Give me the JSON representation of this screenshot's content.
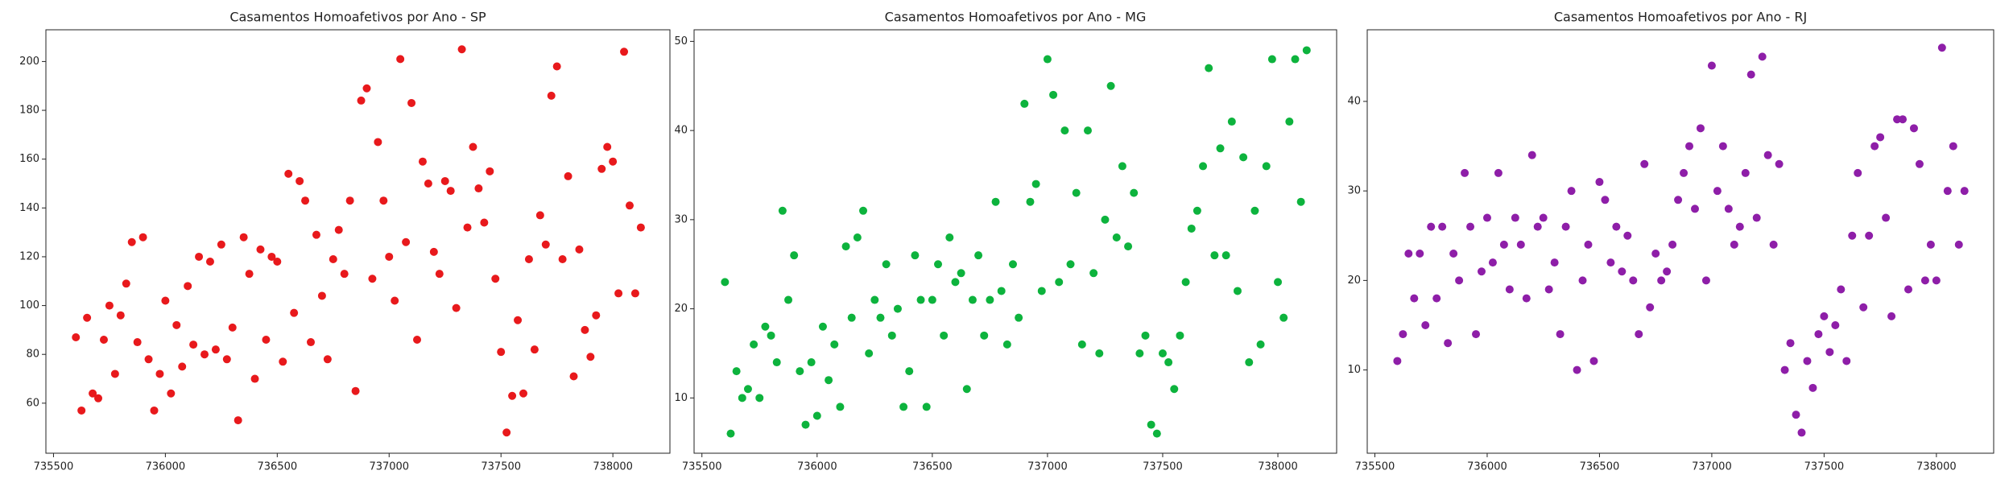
{
  "chart_data": [
    {
      "type": "scatter",
      "title": "Casamentos Homoafetivos por Ano  - SP",
      "color": "#e8191c",
      "x": [
        735600,
        735625,
        735650,
        735675,
        735700,
        735725,
        735750,
        735775,
        735800,
        735825,
        735850,
        735875,
        735900,
        735925,
        735950,
        735975,
        736000,
        736025,
        736050,
        736075,
        736100,
        736125,
        736150,
        736175,
        736200,
        736225,
        736250,
        736275,
        736300,
        736325,
        736350,
        736375,
        736400,
        736425,
        736450,
        736475,
        736500,
        736525,
        736550,
        736575,
        736600,
        736625,
        736650,
        736675,
        736700,
        736725,
        736750,
        736775,
        736800,
        736825,
        736850,
        736875,
        736900,
        736925,
        736950,
        736975,
        737000,
        737025,
        737050,
        737075,
        737100,
        737125,
        737150,
        737175,
        737200,
        737225,
        737250,
        737275,
        737300,
        737325,
        737350,
        737375,
        737400,
        737425,
        737450,
        737475,
        737500,
        737525,
        737550,
        737575,
        737600,
        737625,
        737650,
        737675,
        737700,
        737725,
        737750,
        737775,
        737800,
        737825,
        737850,
        737875,
        737900,
        737925,
        737950,
        737975,
        738000,
        738025,
        738050,
        738075,
        738100,
        738125
      ],
      "values": [
        87,
        57,
        95,
        64,
        62,
        86,
        100,
        72,
        96,
        109,
        126,
        85,
        128,
        78,
        57,
        72,
        102,
        64,
        92,
        75,
        108,
        84,
        120,
        80,
        118,
        82,
        125,
        78,
        91,
        53,
        128,
        113,
        70,
        123,
        86,
        120,
        118,
        77,
        154,
        97,
        151,
        143,
        85,
        129,
        104,
        78,
        119,
        131,
        113,
        143,
        65,
        184,
        189,
        111,
        167,
        143,
        120,
        102,
        201,
        126,
        183,
        86,
        159,
        150,
        122,
        113,
        151,
        147,
        99,
        205,
        132,
        165,
        148,
        134,
        155,
        111,
        81,
        48,
        63,
        94,
        64,
        119,
        82,
        137,
        125,
        186,
        198,
        119,
        153,
        71,
        123,
        90,
        79,
        96,
        156,
        165,
        159,
        105,
        204,
        141,
        105,
        132
      ],
      "xlim": [
        735466,
        738255
      ],
      "ylim": [
        39.5,
        213
      ],
      "xticks": [
        735500,
        736000,
        736500,
        737000,
        737500,
        738000
      ],
      "yticks": [
        60,
        80,
        100,
        120,
        140,
        160,
        180,
        200
      ]
    },
    {
      "type": "scatter",
      "title": "Casamentos Homoafetivos por Ano - MG",
      "color": "#0db33d",
      "x": [
        735600,
        735625,
        735650,
        735675,
        735700,
        735725,
        735750,
        735775,
        735800,
        735825,
        735850,
        735875,
        735900,
        735925,
        735950,
        735975,
        736000,
        736025,
        736050,
        736075,
        736100,
        736125,
        736150,
        736175,
        736200,
        736225,
        736250,
        736275,
        736300,
        736325,
        736350,
        736375,
        736400,
        736425,
        736450,
        736475,
        736500,
        736525,
        736550,
        736575,
        736600,
        736625,
        736650,
        736675,
        736700,
        736725,
        736750,
        736775,
        736800,
        736825,
        736850,
        736875,
        736900,
        736925,
        736950,
        736975,
        737000,
        737025,
        737050,
        737075,
        737100,
        737125,
        737150,
        737175,
        737200,
        737225,
        737250,
        737275,
        737300,
        737325,
        737350,
        737375,
        737400,
        737425,
        737450,
        737475,
        737500,
        737525,
        737550,
        737575,
        737600,
        737625,
        737650,
        737675,
        737700,
        737725,
        737750,
        737775,
        737800,
        737825,
        737850,
        737875,
        737900,
        737925,
        737950,
        737975,
        738000,
        738025,
        738050,
        738075,
        738100,
        738125
      ],
      "values": [
        23,
        6,
        13,
        10,
        11,
        16,
        10,
        18,
        17,
        14,
        31,
        21,
        26,
        13,
        7,
        14,
        8,
        18,
        12,
        16,
        9,
        27,
        19,
        28,
        31,
        15,
        21,
        19,
        25,
        17,
        20,
        9,
        13,
        26,
        21,
        9,
        21,
        25,
        17,
        28,
        23,
        24,
        11,
        21,
        26,
        17,
        21,
        32,
        22,
        16,
        25,
        19,
        43,
        32,
        34,
        22,
        48,
        44,
        23,
        40,
        25,
        33,
        16,
        40,
        24,
        15,
        30,
        45,
        28,
        36,
        27,
        33,
        15,
        17,
        7,
        6,
        15,
        14,
        11,
        17,
        23,
        29,
        31,
        36,
        47,
        26,
        38,
        26,
        41,
        22,
        37,
        14,
        31,
        16,
        36,
        48,
        23,
        19,
        41,
        48,
        32,
        49
      ],
      "xlim": [
        735466,
        738255
      ],
      "ylim": [
        3.8,
        51.3
      ],
      "xticks": [
        735500,
        736000,
        736500,
        737000,
        737500,
        738000
      ],
      "yticks": [
        10,
        20,
        30,
        40,
        50
      ]
    },
    {
      "type": "scatter",
      "title": "Casamentos Homoafetivos por Ano - RJ",
      "color": "#8e1ea8",
      "x": [
        735600,
        735625,
        735650,
        735675,
        735700,
        735725,
        735750,
        735775,
        735800,
        735825,
        735850,
        735875,
        735900,
        735925,
        735950,
        735975,
        736000,
        736025,
        736050,
        736075,
        736100,
        736125,
        736150,
        736175,
        736200,
        736225,
        736250,
        736275,
        736300,
        736325,
        736350,
        736375,
        736400,
        736425,
        736450,
        736475,
        736500,
        736525,
        736550,
        736575,
        736600,
        736625,
        736650,
        736675,
        736700,
        736725,
        736750,
        736775,
        736800,
        736825,
        736850,
        736875,
        736900,
        736925,
        736950,
        736975,
        737000,
        737025,
        737050,
        737075,
        737100,
        737125,
        737150,
        737175,
        737200,
        737225,
        737250,
        737275,
        737300,
        737325,
        737350,
        737375,
        737400,
        737425,
        737450,
        737475,
        737500,
        737525,
        737550,
        737575,
        737600,
        737625,
        737650,
        737675,
        737700,
        737725,
        737750,
        737775,
        737800,
        737825,
        737850,
        737875,
        737900,
        737925,
        737950,
        737975,
        738000,
        738025,
        738050,
        738075,
        738100,
        738125
      ],
      "values": [
        11,
        14,
        23,
        18,
        23,
        15,
        26,
        18,
        26,
        13,
        23,
        20,
        32,
        26,
        14,
        21,
        27,
        22,
        32,
        24,
        19,
        27,
        24,
        18,
        34,
        26,
        27,
        19,
        22,
        14,
        26,
        30,
        10,
        20,
        24,
        11,
        31,
        29,
        22,
        26,
        21,
        25,
        20,
        14,
        33,
        17,
        23,
        20,
        21,
        24,
        29,
        32,
        35,
        28,
        37,
        20,
        44,
        30,
        35,
        28,
        24,
        26,
        32,
        43,
        27,
        45,
        34,
        24,
        33,
        10,
        13,
        5,
        3,
        11,
        8,
        14,
        16,
        12,
        15,
        19,
        11,
        25,
        32,
        17,
        25,
        35,
        36,
        27,
        16,
        38,
        38,
        19,
        37,
        33,
        20,
        24,
        20,
        46,
        30,
        35,
        24,
        30
      ],
      "xlim": [
        735466,
        738255
      ],
      "ylim": [
        0.7,
        48
      ],
      "xticks": [
        735500,
        736000,
        736500,
        737000,
        737500,
        738000
      ],
      "yticks": [
        10,
        20,
        30,
        40
      ]
    }
  ]
}
